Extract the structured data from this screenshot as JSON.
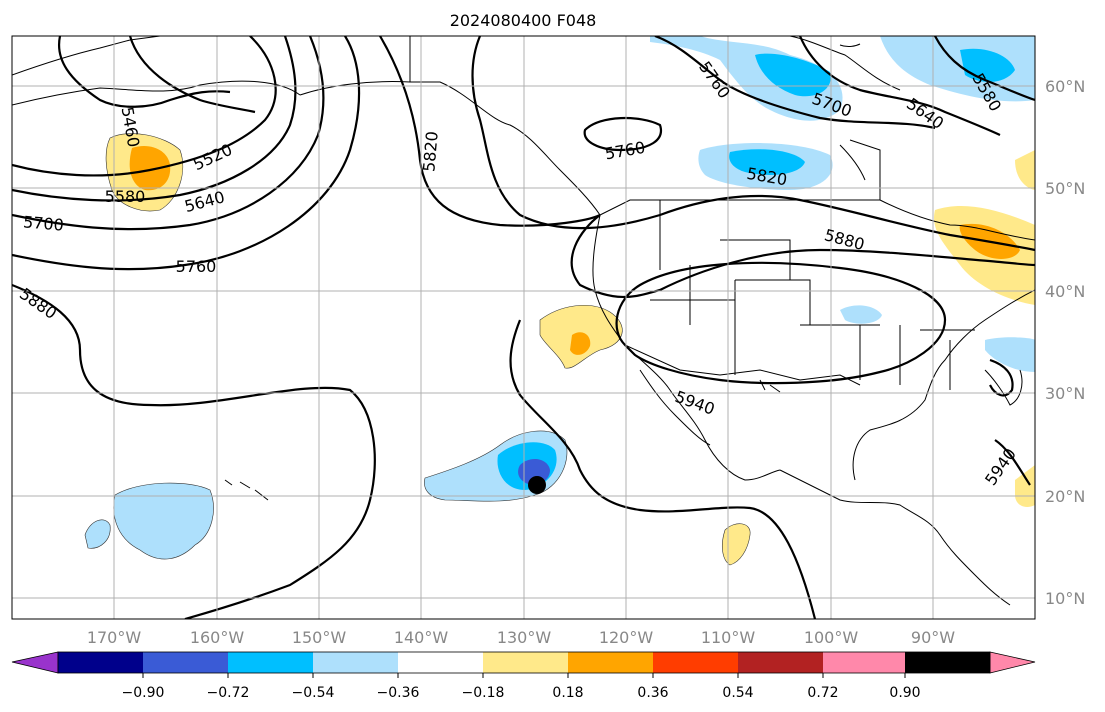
{
  "title": "2024080400 F048",
  "lon_ticks": [
    "170°W",
    "160°W",
    "150°W",
    "140°W",
    "130°W",
    "120°W",
    "110°W",
    "100°W",
    "90°W"
  ],
  "lat_ticks": [
    "60°N",
    "50°N",
    "40°N",
    "30°N",
    "20°N",
    "10°N"
  ],
  "contour_labels": [
    "5460",
    "5520",
    "5580",
    "5640",
    "5700",
    "5760",
    "5880",
    "5820",
    "5760",
    "5820",
    "5880",
    "5940",
    "5760",
    "5700",
    "5640",
    "5580",
    "5940"
  ],
  "colorbar": {
    "colors": [
      "#9933cc",
      "#00008b",
      "#3a5bd6",
      "#00bfff",
      "#aee0fc",
      "#ffffff",
      "#ffe98a",
      "#ffa500",
      "#ff3d00",
      "#b22222",
      "#ff88aa"
    ],
    "ticks": [
      "−0.90",
      "−0.72",
      "−0.54",
      "−0.36",
      "−0.18",
      "0.18",
      "0.36",
      "0.54",
      "0.72",
      "0.90"
    ]
  },
  "marker": "black-dot"
}
